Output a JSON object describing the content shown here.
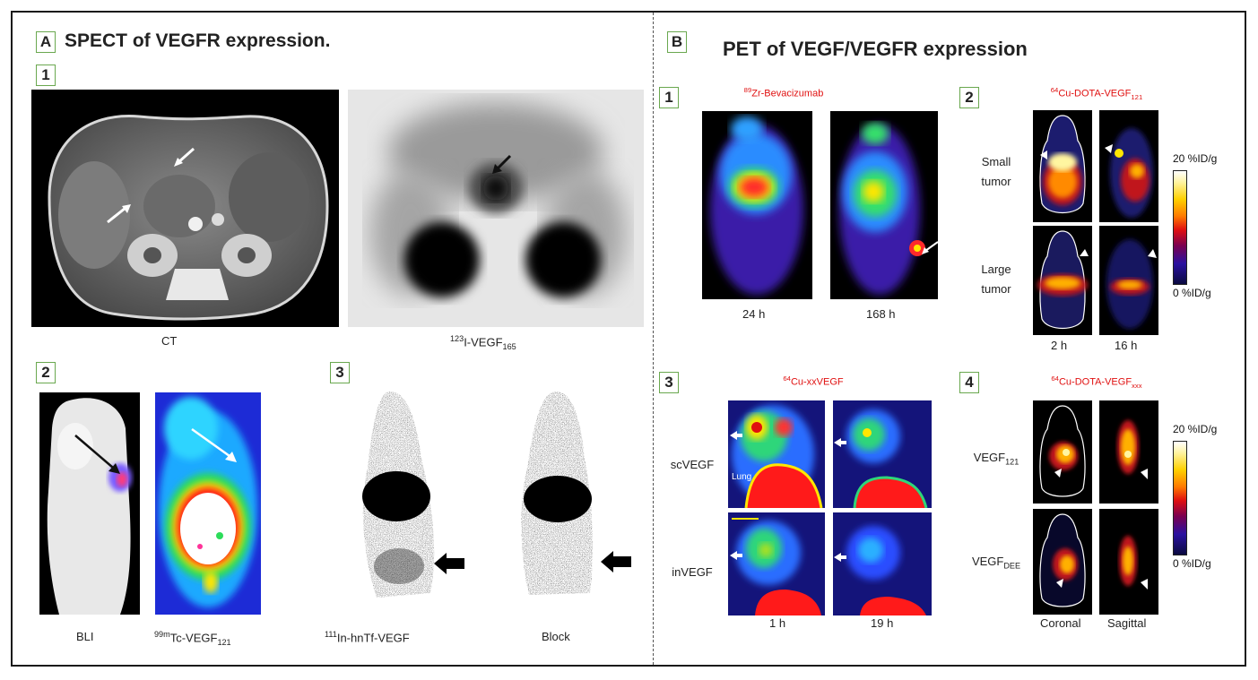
{
  "panel_a": {
    "badge": "A",
    "title": "SPECT of VEGFR expression.",
    "sub1": {
      "badge": "1",
      "captions": {
        "ct": "CT",
        "vegf165_sup": "123",
        "vegf165_main": "I-VEGF",
        "vegf165_sub": "165"
      }
    },
    "sub2": {
      "badge": "2",
      "captions": {
        "bli": "BLI",
        "tc_sup": "99m",
        "tc_main": "Tc-VEGF",
        "tc_sub": "121"
      }
    },
    "sub3": {
      "badge": "3",
      "captions": {
        "in_sup": "111",
        "in_main": "In-hnTf-VEGF",
        "block": "Block"
      }
    }
  },
  "panel_b": {
    "badge": "B",
    "title": "PET of VEGF/VEGFR expression",
    "sub1": {
      "badge": "1",
      "tracer_sup": "89",
      "tracer_main": "Zr-Bevacizumab",
      "times": [
        "24 h",
        "168 h"
      ]
    },
    "sub2": {
      "badge": "2",
      "tracer_sup": "64",
      "tracer_main": "Cu-DOTA-VEGF",
      "tracer_sub": "121",
      "rows": [
        "Small tumor",
        "Large tumor"
      ],
      "times": [
        "2 h",
        "16 h"
      ],
      "scale_max": "20 %ID/g",
      "scale_min": "0 %ID/g"
    },
    "sub3": {
      "badge": "3",
      "tracer_sup": "64",
      "tracer_main": "Cu-xxVEGF",
      "rows": [
        "scVEGF",
        "inVEGF"
      ],
      "lung": "Lung",
      "times": [
        "1 h",
        "19 h"
      ]
    },
    "sub4": {
      "badge": "4",
      "tracer_sup": "64",
      "tracer_main": "Cu-DOTA-VEGF",
      "tracer_sub": "xxx",
      "row1_main": "VEGF",
      "row1_sub": "121",
      "row2_main": "VEGF",
      "row2_sub": "DEE",
      "views": [
        "Coronal",
        "Sagittal"
      ],
      "scale_max": "20 %ID/g",
      "scale_min": "0 %ID/g"
    }
  }
}
